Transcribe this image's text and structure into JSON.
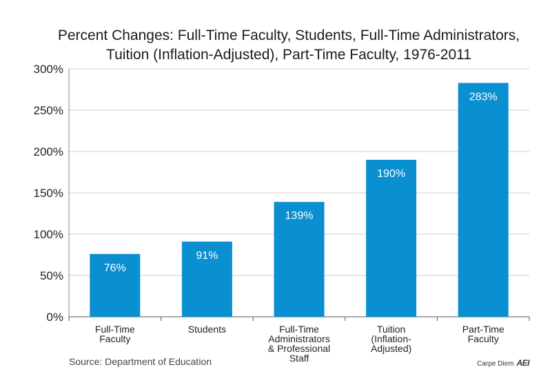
{
  "chart_data": {
    "type": "bar",
    "title_lines": [
      "Percent Changes: Full-Time Faculty, Students, Full-Time Administrators,",
      "Tuition (Inflation-Adjusted), Part-Time Faculty, 1976-2011"
    ],
    "categories": [
      [
        "Full-Time",
        "Faculty"
      ],
      [
        "Students"
      ],
      [
        "Full-Time",
        "Administrators",
        "& Professional",
        "Staff"
      ],
      [
        "Tuition",
        "(Inflation-",
        "Adjusted)"
      ],
      [
        "Part-Time",
        "Faculty"
      ]
    ],
    "values": [
      76,
      91,
      139,
      190,
      283
    ],
    "data_labels": [
      "76%",
      "91%",
      "139%",
      "190%",
      "283%"
    ],
    "y_ticks": [
      0,
      50,
      100,
      150,
      200,
      250,
      300
    ],
    "y_tick_labels": [
      "0%",
      "50%",
      "100%",
      "150%",
      "200%",
      "250%",
      "300%"
    ],
    "ylim": [
      0,
      300
    ],
    "xlabel": "",
    "ylabel": "",
    "grid": true,
    "bar_color": "#0a8fd1",
    "grid_color": "#cccccc",
    "label_color": "#ffffff"
  },
  "footer": {
    "source": "Source: Department of Education",
    "brand_text": "Carpe Diem",
    "brand_logo": "AEI"
  }
}
